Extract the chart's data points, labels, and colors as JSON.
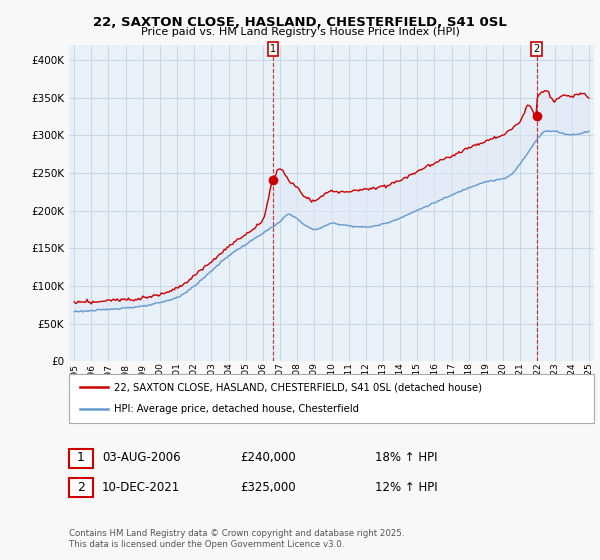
{
  "title": "22, SAXTON CLOSE, HASLAND, CHESTERFIELD, S41 0SL",
  "subtitle": "Price paid vs. HM Land Registry's House Price Index (HPI)",
  "legend_line1": "22, SAXTON CLOSE, HASLAND, CHESTERFIELD, S41 0SL (detached house)",
  "legend_line2": "HPI: Average price, detached house, Chesterfield",
  "purchase1_date": "03-AUG-2006",
  "purchase1_price": 240000,
  "purchase1_hpi": "18% ↑ HPI",
  "purchase2_date": "10-DEC-2021",
  "purchase2_price": 325000,
  "purchase2_hpi": "12% ↑ HPI",
  "footnote": "Contains HM Land Registry data © Crown copyright and database right 2025.\nThis data is licensed under the Open Government Licence v3.0.",
  "line1_color": "#cc0000",
  "line2_color": "#6699cc",
  "fill_color": "#dde8f5",
  "ylim": [
    0,
    420000
  ],
  "yticks": [
    0,
    50000,
    100000,
    150000,
    200000,
    250000,
    300000,
    350000,
    400000
  ],
  "xstart": 1995,
  "xend": 2025,
  "marker1_year": 2006.58,
  "marker1_price": 240000,
  "marker2_year": 2021.95,
  "marker2_price": 325000,
  "bg_color": "#f0f4f8",
  "plot_bg_color": "#e8f0f8"
}
